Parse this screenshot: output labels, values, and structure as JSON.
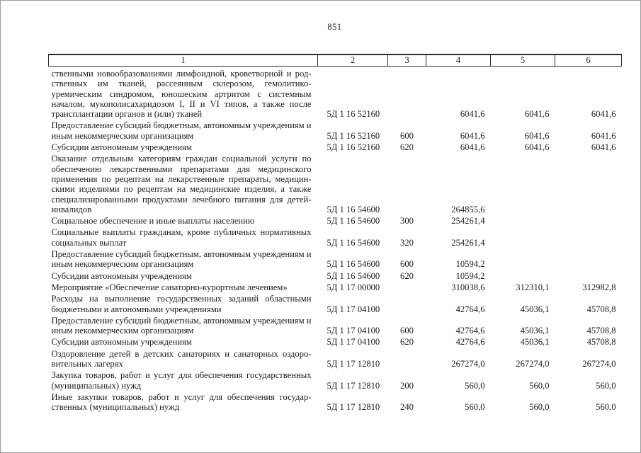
{
  "page": {
    "number": "851"
  },
  "table": {
    "header": [
      "1",
      "2",
      "3",
      "4",
      "5",
      "6"
    ],
    "rows": [
      {
        "name": "ственными новообразованиями лимфоидной, кроветворной и род­ственных им тканей, рассеянным склерозом, гемолитико-уремическим синдромом, юношеским артритом с системным началом, мукополисахаридозом I, II и VI типов, а также после трансплантации органов и (или) тканей",
        "code": "5Д 1 16 52160",
        "group": "",
        "amounts": [
          "6041,6",
          "6041,6",
          "6041,6"
        ]
      },
      {
        "name": "Предоставление субсидий бюджетным, автономным учреждениям и иным некоммерческим организациям",
        "code": "5Д 1 16 52160",
        "group": "600",
        "amounts": [
          "6041,6",
          "6041,6",
          "6041,6"
        ]
      },
      {
        "name": "Субсидии автономным учреждениям",
        "code": "5Д 1 16 52160",
        "group": "620",
        "amounts": [
          "6041,6",
          "6041,6",
          "6041,6"
        ]
      },
      {
        "name": "Оказание отдельным категориям граждан социальной услуги по обеспечению лекарственными препаратами для медицинского применения по рецептам на лекарственные препараты, медицин­скими изделиями по рецептам на медицинские изделия, а также специализированными продуктами лечебного питания для детей-инвалидов",
        "code": "5Д 1 16 54600",
        "group": "",
        "amounts": [
          "264855,6",
          "",
          ""
        ]
      },
      {
        "name": "Социальное обеспечение и иные выплаты населению",
        "code": "5Д 1 16 54600",
        "group": "300",
        "amounts": [
          "254261,4",
          "",
          ""
        ]
      },
      {
        "name": "Социальные выплаты гражданам, кроме публичных нормативных социальных выплат",
        "code": "5Д 1 16 54600",
        "group": "320",
        "amounts": [
          "254261,4",
          "",
          ""
        ]
      },
      {
        "name": "Предоставление субсидий бюджетным, автономным учреждениям и иным некоммерческим организациям",
        "code": "5Д 1 16 54600",
        "group": "600",
        "amounts": [
          "10594,2",
          "",
          ""
        ]
      },
      {
        "name": "Субсидии автономным учреждениям",
        "code": "5Д 1 16 54600",
        "group": "620",
        "amounts": [
          "10594,2",
          "",
          ""
        ]
      },
      {
        "name": "Мероприятие «Обеспечение санаторно-курортным лечением»",
        "code": "5Д 1 17 00000",
        "group": "",
        "amounts": [
          "310038,6",
          "312310,1",
          "312982,8"
        ]
      },
      {
        "name": "Расходы на выполнение государственных заданий областными бюджетными и автономными учреждениями",
        "code": "5Д 1 17 04100",
        "group": "",
        "amounts": [
          "42764,6",
          "45036,1",
          "45708,8"
        ]
      },
      {
        "name": "Предоставление субсидий бюджетным, автономным учреждениям и иным некоммерческим организациям",
        "code": "5Д 1 17 04100",
        "group": "600",
        "amounts": [
          "42764,6",
          "45036,1",
          "45708,8"
        ]
      },
      {
        "name": "Субсидии автономным учреждениям",
        "code": "5Д 1 17 04100",
        "group": "620",
        "amounts": [
          "42764,6",
          "45036,1",
          "45708,8"
        ]
      },
      {
        "name": "Оздоровление детей в детских санаториях и санаторных оздоро­вительных лагерях",
        "code": "5Д 1 17 12810",
        "group": "",
        "amounts": [
          "267274,0",
          "267274,0",
          "267274,0"
        ]
      },
      {
        "name": "Закупка товаров, работ и услуг для обеспечения государственных (муниципальных) нужд",
        "code": "5Д 1 17 12810",
        "group": "200",
        "amounts": [
          "560,0",
          "560,0",
          "560,0"
        ]
      },
      {
        "name": "Иные закупки товаров, работ и услуг для обеспечения государ­ственных (муниципальных) нужд",
        "code": "5Д 1 17 12810",
        "group": "240",
        "amounts": [
          "560,0",
          "560,0",
          "560,0"
        ]
      }
    ]
  }
}
